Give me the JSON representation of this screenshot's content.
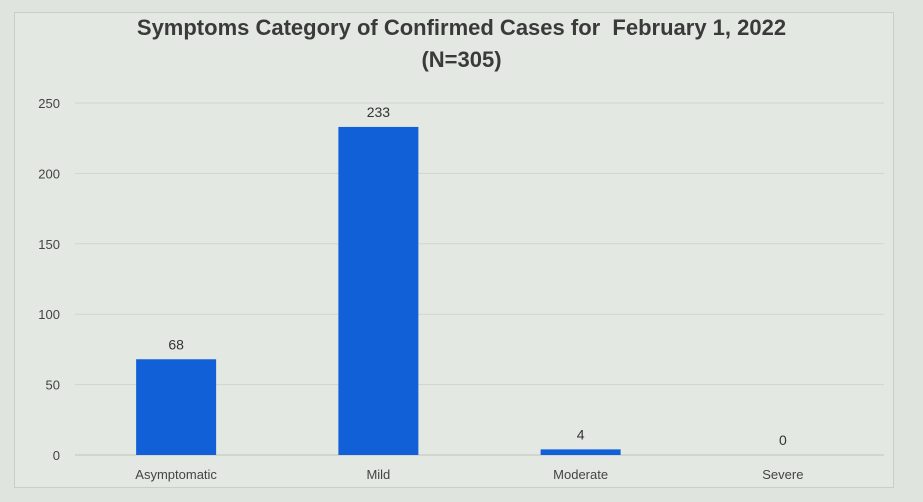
{
  "chart_data": {
    "type": "bar",
    "title": "Symptoms Category of Confirmed Cases for  February 1, 2022",
    "subtitle": "(N=305)",
    "categories": [
      "Asymptomatic",
      "Mild",
      "Moderate",
      "Severe"
    ],
    "values": [
      68,
      233,
      4,
      0
    ],
    "data_labels": [
      "68",
      "233",
      "4",
      "0"
    ],
    "yticks": [
      0,
      50,
      100,
      150,
      200,
      250
    ],
    "ylim": [
      0,
      250
    ],
    "grid": true,
    "bar_color": "#1160d8"
  }
}
